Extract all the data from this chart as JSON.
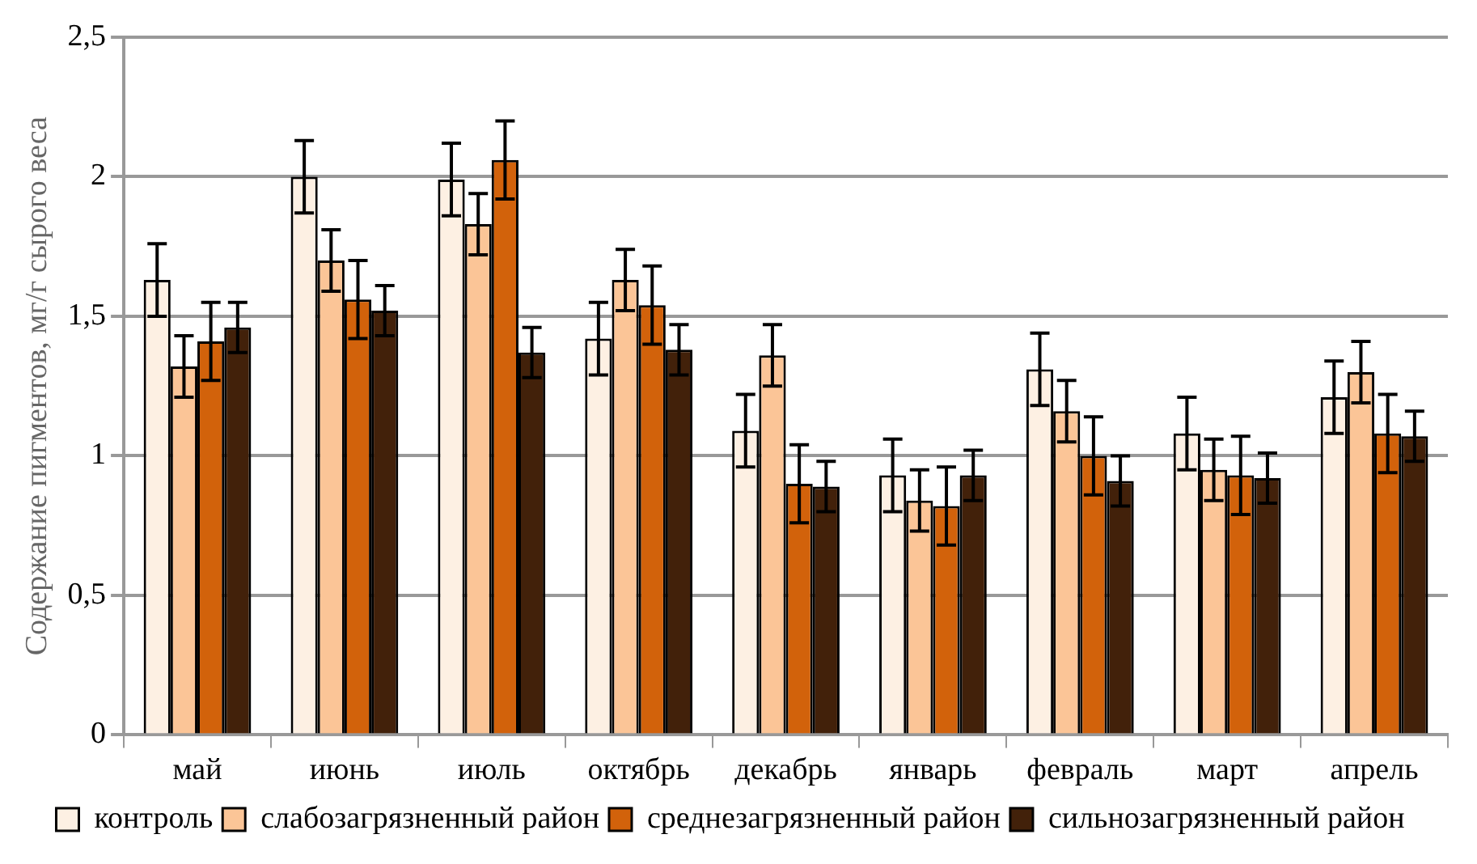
{
  "chart_data": {
    "type": "bar",
    "ylabel": "Содержание пигментов, мг/г сырого веса",
    "categories": [
      "май",
      "июнь",
      "июль",
      "октябрь",
      "декабрь",
      "январь",
      "февраль",
      "март",
      "апрель"
    ],
    "series": [
      {
        "name": "контроль",
        "color": "#fdf0e3",
        "values": [
          1.63,
          2.0,
          1.99,
          1.42,
          1.09,
          0.93,
          1.31,
          1.08,
          1.21
        ],
        "errors": [
          0.13,
          0.13,
          0.13,
          0.13,
          0.13,
          0.13,
          0.13,
          0.13,
          0.13
        ]
      },
      {
        "name": "слабозагрязненный район",
        "color": "#fbc597",
        "values": [
          1.32,
          1.7,
          1.83,
          1.63,
          1.36,
          0.84,
          1.16,
          0.95,
          1.3
        ],
        "errors": [
          0.11,
          0.11,
          0.11,
          0.11,
          0.11,
          0.11,
          0.11,
          0.11,
          0.11
        ]
      },
      {
        "name": "среднезагрязненный район",
        "color": "#d2620b",
        "values": [
          1.41,
          1.56,
          2.06,
          1.54,
          0.9,
          0.82,
          1.0,
          0.93,
          1.08
        ],
        "errors": [
          0.14,
          0.14,
          0.14,
          0.14,
          0.14,
          0.14,
          0.14,
          0.14,
          0.14
        ]
      },
      {
        "name": "сильнозагрязненный район",
        "color": "#42210a",
        "values": [
          1.46,
          1.52,
          1.37,
          1.38,
          0.89,
          0.93,
          0.91,
          0.92,
          1.07
        ],
        "errors": [
          0.09,
          0.09,
          0.09,
          0.09,
          0.09,
          0.09,
          0.09,
          0.09,
          0.09
        ]
      }
    ],
    "ylim": [
      0,
      2.5
    ],
    "yticks": [
      {
        "value": 0,
        "label": "0"
      },
      {
        "value": 0.5,
        "label": "0,5"
      },
      {
        "value": 1,
        "label": "1"
      },
      {
        "value": 1.5,
        "label": "1,5"
      },
      {
        "value": 2,
        "label": "2"
      },
      {
        "value": 2.5,
        "label": "2,5"
      }
    ],
    "grid": "y",
    "legend": "bottom"
  }
}
